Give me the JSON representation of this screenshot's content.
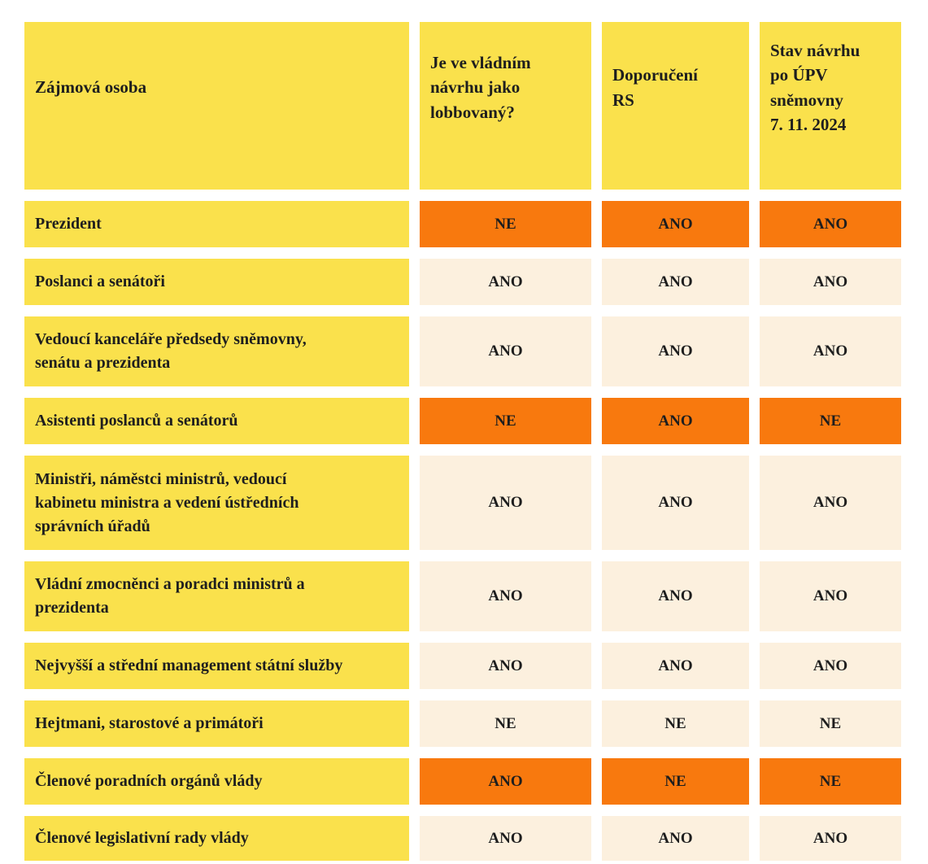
{
  "colors": {
    "yellow": "#fae14c",
    "orange": "#f8790e",
    "cream": "#fcf0de",
    "text": "#1e1e1e",
    "background": "#ffffff"
  },
  "table": {
    "columns": [
      {
        "label": "Zájmová osoba"
      },
      {
        "label": "Je ve vládním\nnávrhu jako\nlobbovaný?"
      },
      {
        "label": "Doporučení\nRS"
      },
      {
        "label": "Stav návrhu\npo ÚPV\nsněmovny\n7. 11. 2024"
      }
    ],
    "rows": [
      {
        "label": "Prezident",
        "cells": [
          {
            "value": "NE",
            "variant": "orange"
          },
          {
            "value": "ANO",
            "variant": "orange"
          },
          {
            "value": "ANO",
            "variant": "orange"
          }
        ]
      },
      {
        "label": "Poslanci a senátoři",
        "cells": [
          {
            "value": "ANO",
            "variant": "cream"
          },
          {
            "value": "ANO",
            "variant": "cream"
          },
          {
            "value": "ANO",
            "variant": "cream"
          }
        ]
      },
      {
        "label": "Vedoucí kanceláře předsedy sněmovny,\nsenátu a prezidenta",
        "cells": [
          {
            "value": "ANO",
            "variant": "cream"
          },
          {
            "value": "ANO",
            "variant": "cream"
          },
          {
            "value": "ANO",
            "variant": "cream"
          }
        ]
      },
      {
        "label": "Asistenti poslanců a senátorů",
        "cells": [
          {
            "value": "NE",
            "variant": "orange"
          },
          {
            "value": "ANO",
            "variant": "orange"
          },
          {
            "value": "NE",
            "variant": "orange"
          }
        ]
      },
      {
        "label": "Ministři, náměstci ministrů, vedoucí\nkabinetu ministra a vedení ústředních\nsprávních úřadů",
        "cells": [
          {
            "value": "ANO",
            "variant": "cream"
          },
          {
            "value": "ANO",
            "variant": "cream"
          },
          {
            "value": "ANO",
            "variant": "cream"
          }
        ]
      },
      {
        "label": "Vládní zmocněnci a poradci ministrů a\nprezidenta",
        "cells": [
          {
            "value": "ANO",
            "variant": "cream"
          },
          {
            "value": "ANO",
            "variant": "cream"
          },
          {
            "value": "ANO",
            "variant": "cream"
          }
        ]
      },
      {
        "label": "Nejvyšší a střední management státní služby",
        "cells": [
          {
            "value": "ANO",
            "variant": "cream"
          },
          {
            "value": "ANO",
            "variant": "cream"
          },
          {
            "value": "ANO",
            "variant": "cream"
          }
        ]
      },
      {
        "label": "Hejtmani, starostové a primátoři",
        "cells": [
          {
            "value": "NE",
            "variant": "cream"
          },
          {
            "value": "NE",
            "variant": "cream"
          },
          {
            "value": "NE",
            "variant": "cream"
          }
        ]
      },
      {
        "label": "Členové poradních orgánů vlády",
        "cells": [
          {
            "value": "ANO",
            "variant": "orange"
          },
          {
            "value": "NE",
            "variant": "orange"
          },
          {
            "value": "NE",
            "variant": "orange"
          }
        ]
      },
      {
        "label": "Členové legislativní rady vlády",
        "cells": [
          {
            "value": "ANO",
            "variant": "cream"
          },
          {
            "value": "ANO",
            "variant": "cream"
          },
          {
            "value": "ANO",
            "variant": "cream"
          }
        ]
      }
    ]
  }
}
